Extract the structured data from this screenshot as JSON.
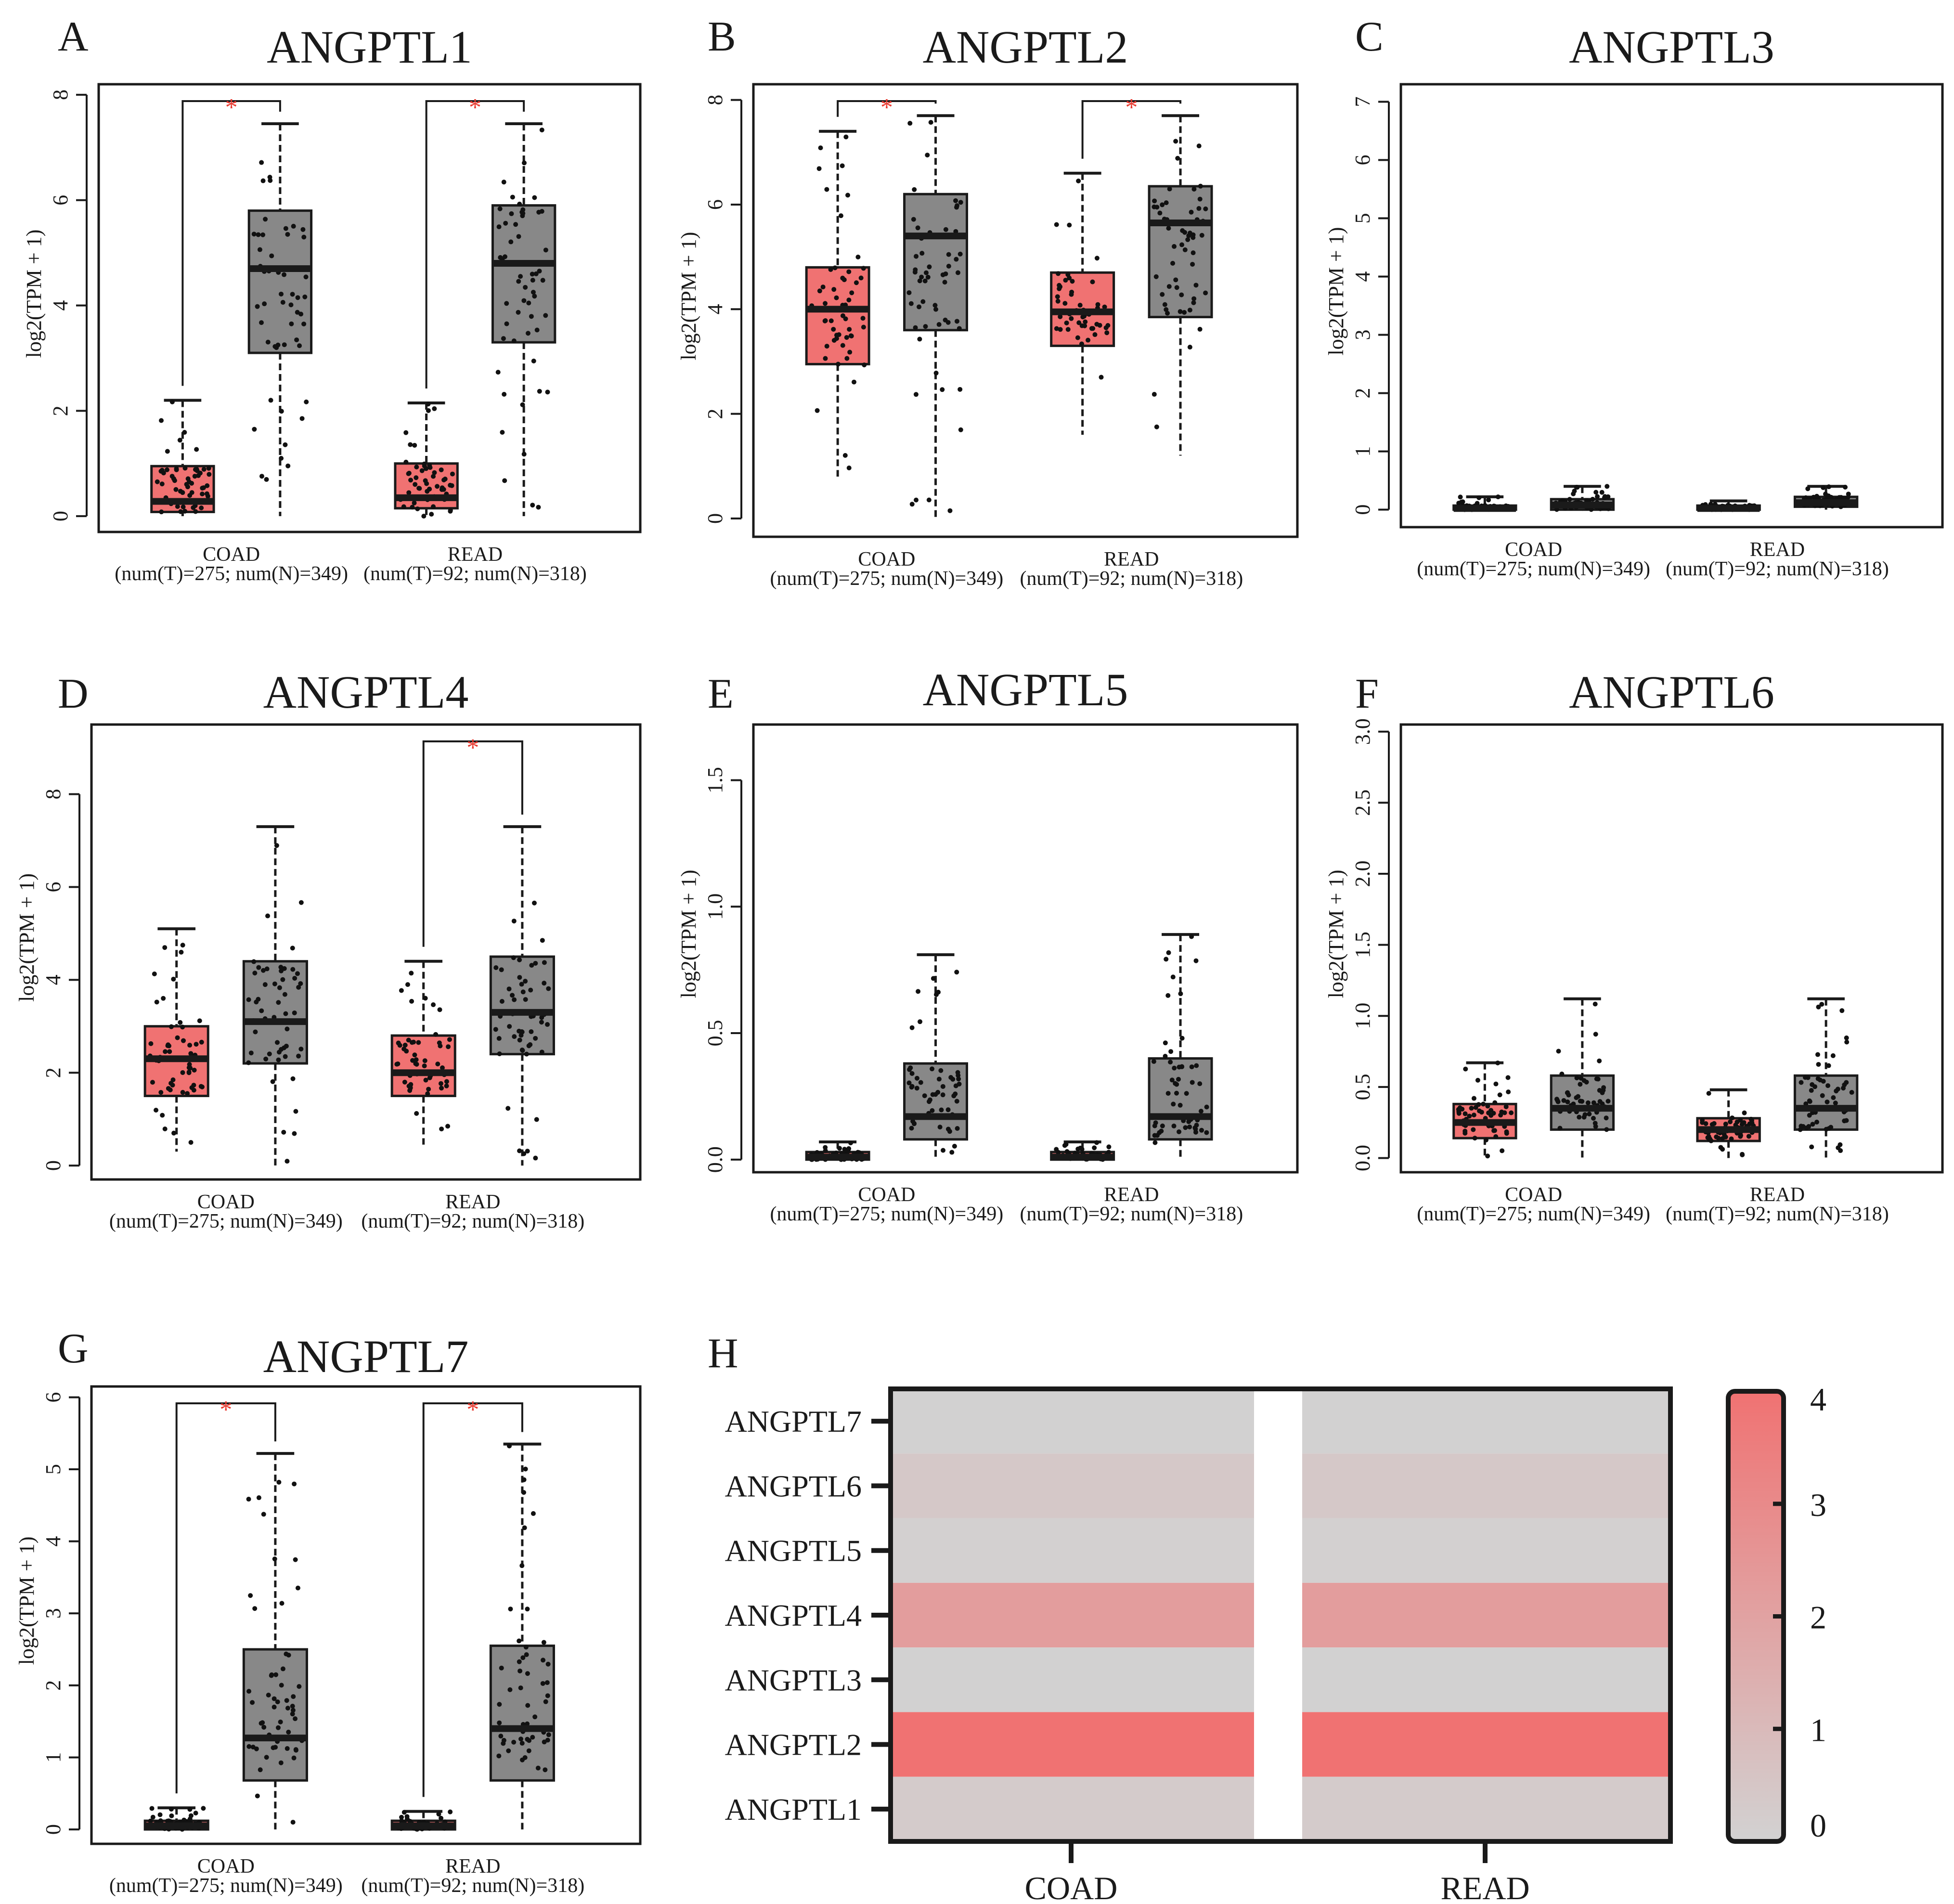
{
  "figure": {
    "tumor_color": "#f07272",
    "normal_color": "#888888",
    "sig_color": "#e8392f",
    "sig_marker": "*",
    "ylabel": "log2(TPM + 1)"
  },
  "chart_data": [
    {
      "panel": "A",
      "type": "box",
      "title": "ANGPTL1",
      "ylabel": "log2(TPM + 1)",
      "ylim": [
        -0.3,
        8.2
      ],
      "yticks": [
        "0",
        "2",
        "4",
        "6",
        "8"
      ],
      "ytick_values": [
        0,
        2,
        4,
        6,
        8
      ],
      "groups": [
        {
          "name": "COAD",
          "counts": "(num(T)=275; num(N)=349)",
          "tumor": {
            "q1": 0.08,
            "median": 0.28,
            "q3": 0.95,
            "whisker_low": 0,
            "whisker_high": 2.2
          },
          "normal": {
            "q1": 3.1,
            "median": 4.7,
            "q3": 5.8,
            "whisker_low": 0,
            "whisker_high": 7.45
          },
          "significant": true
        },
        {
          "name": "READ",
          "counts": "(num(T)=92; num(N)=318)",
          "tumor": {
            "q1": 0.15,
            "median": 0.35,
            "q3": 1.0,
            "whisker_low": 0,
            "whisker_high": 2.15
          },
          "normal": {
            "q1": 3.3,
            "median": 4.8,
            "q3": 5.9,
            "whisker_low": 0,
            "whisker_high": 7.45
          },
          "significant": true
        }
      ]
    },
    {
      "panel": "B",
      "type": "box",
      "title": "ANGPTL2",
      "ylabel": "log2(TPM + 1)",
      "ylim": [
        -0.35,
        8.3
      ],
      "yticks": [
        "0",
        "2",
        "4",
        "6",
        "8"
      ],
      "ytick_values": [
        0,
        2,
        4,
        6,
        8
      ],
      "groups": [
        {
          "name": "COAD",
          "counts": "(num(T)=275; num(N)=349)",
          "tumor": {
            "q1": 2.95,
            "median": 4.0,
            "q3": 4.8,
            "whisker_low": 0.8,
            "whisker_high": 7.4
          },
          "normal": {
            "q1": 3.6,
            "median": 5.4,
            "q3": 6.2,
            "whisker_low": 0,
            "whisker_high": 7.7
          },
          "significant": true
        },
        {
          "name": "READ",
          "counts": "(num(T)=92; num(N)=318)",
          "tumor": {
            "q1": 3.3,
            "median": 3.95,
            "q3": 4.7,
            "whisker_low": 1.6,
            "whisker_high": 6.6
          },
          "normal": {
            "q1": 3.85,
            "median": 5.65,
            "q3": 6.35,
            "whisker_low": 1.2,
            "whisker_high": 7.7
          },
          "significant": true
        }
      ]
    },
    {
      "panel": "C",
      "type": "box",
      "title": "ANGPTL3",
      "ylabel": "log2(TPM + 1)",
      "ylim": [
        -0.3,
        7.3
      ],
      "yticks": [
        "0",
        "1",
        "2",
        "3",
        "4",
        "5",
        "6",
        "7"
      ],
      "ytick_values": [
        0,
        1,
        2,
        3,
        4,
        5,
        6,
        7
      ],
      "groups": [
        {
          "name": "COAD",
          "counts": "(num(T)=275; num(N)=349)",
          "tumor": {
            "q1": 0.0,
            "median": 0.02,
            "q3": 0.07,
            "whisker_low": 0,
            "whisker_high": 0.22
          },
          "normal": {
            "q1": 0.0,
            "median": 0.08,
            "q3": 0.18,
            "whisker_low": 0,
            "whisker_high": 0.4
          },
          "significant": false
        },
        {
          "name": "READ",
          "counts": "(num(T)=92; num(N)=318)",
          "tumor": {
            "q1": 0.0,
            "median": 0.02,
            "q3": 0.07,
            "whisker_low": 0,
            "whisker_high": 0.15
          },
          "normal": {
            "q1": 0.05,
            "median": 0.12,
            "q3": 0.22,
            "whisker_low": 0,
            "whisker_high": 0.4
          },
          "significant": false
        }
      ]
    },
    {
      "panel": "D",
      "type": "box",
      "title": "ANGPTL4",
      "ylabel": "log2(TPM + 1)",
      "ylim": [
        -0.3,
        9.5
      ],
      "yticks": [
        "0",
        "2",
        "4",
        "6",
        "8"
      ],
      "ytick_values": [
        0,
        2,
        4,
        6,
        8
      ],
      "groups": [
        {
          "name": "COAD",
          "counts": "(num(T)=275; num(N)=349)",
          "tumor": {
            "q1": 1.5,
            "median": 2.3,
            "q3": 3.0,
            "whisker_low": 0.3,
            "whisker_high": 5.1
          },
          "normal": {
            "q1": 2.2,
            "median": 3.1,
            "q3": 4.4,
            "whisker_low": 0,
            "whisker_high": 7.3
          },
          "significant": false
        },
        {
          "name": "READ",
          "counts": "(num(T)=92; num(N)=318)",
          "tumor": {
            "q1": 1.5,
            "median": 2.0,
            "q3": 2.8,
            "whisker_low": 0.45,
            "whisker_high": 4.4
          },
          "normal": {
            "q1": 2.4,
            "median": 3.3,
            "q3": 4.5,
            "whisker_low": 0,
            "whisker_high": 7.3
          },
          "significant": true
        }
      ]
    },
    {
      "panel": "E",
      "type": "box",
      "title": "ANGPTL5",
      "ylabel": "log2(TPM + 1)",
      "ylim": [
        -0.05,
        1.72
      ],
      "yticks": [
        "0.0",
        "0.5",
        "1.0",
        "1.5"
      ],
      "ytick_values": [
        0,
        0.5,
        1.0,
        1.5
      ],
      "groups": [
        {
          "name": "COAD",
          "counts": "(num(T)=275; num(N)=349)",
          "tumor": {
            "q1": 0.0,
            "median": 0.01,
            "q3": 0.03,
            "whisker_low": 0,
            "whisker_high": 0.07
          },
          "normal": {
            "q1": 0.08,
            "median": 0.17,
            "q3": 0.38,
            "whisker_low": 0,
            "whisker_high": 0.81
          },
          "significant": false
        },
        {
          "name": "READ",
          "counts": "(num(T)=92; num(N)=318)",
          "tumor": {
            "q1": 0.0,
            "median": 0.01,
            "q3": 0.03,
            "whisker_low": 0,
            "whisker_high": 0.07
          },
          "normal": {
            "q1": 0.08,
            "median": 0.17,
            "q3": 0.4,
            "whisker_low": 0,
            "whisker_high": 0.89
          },
          "significant": false
        }
      ]
    },
    {
      "panel": "F",
      "type": "box",
      "title": "ANGPTL6",
      "ylabel": "log2(TPM + 1)",
      "ylim": [
        -0.1,
        3.05
      ],
      "yticks": [
        "0.0",
        "0.5",
        "1.0",
        "1.5",
        "2.0",
        "2.5",
        "3.0"
      ],
      "ytick_values": [
        0,
        0.5,
        1.0,
        1.5,
        2.0,
        2.5,
        3.0
      ],
      "groups": [
        {
          "name": "COAD",
          "counts": "(num(T)=275; num(N)=349)",
          "tumor": {
            "q1": 0.14,
            "median": 0.25,
            "q3": 0.38,
            "whisker_low": 0,
            "whisker_high": 0.67
          },
          "normal": {
            "q1": 0.2,
            "median": 0.35,
            "q3": 0.58,
            "whisker_low": 0,
            "whisker_high": 1.12
          },
          "significant": false
        },
        {
          "name": "READ",
          "counts": "(num(T)=92; num(N)=318)",
          "tumor": {
            "q1": 0.12,
            "median": 0.2,
            "q3": 0.28,
            "whisker_low": 0,
            "whisker_high": 0.48
          },
          "normal": {
            "q1": 0.2,
            "median": 0.35,
            "q3": 0.58,
            "whisker_low": 0,
            "whisker_high": 1.12
          },
          "significant": false
        }
      ]
    },
    {
      "panel": "G",
      "type": "box",
      "title": "ANGPTL7",
      "ylabel": "log2(TPM + 1)",
      "ylim": [
        -0.2,
        6.15
      ],
      "yticks": [
        "0",
        "1",
        "2",
        "3",
        "4",
        "5",
        "6"
      ],
      "ytick_values": [
        0,
        1,
        2,
        3,
        4,
        5,
        6
      ],
      "groups": [
        {
          "name": "COAD",
          "counts": "(num(T)=275; num(N)=349)",
          "tumor": {
            "q1": 0.0,
            "median": 0.05,
            "q3": 0.12,
            "whisker_low": 0,
            "whisker_high": 0.3
          },
          "normal": {
            "q1": 0.68,
            "median": 1.27,
            "q3": 2.5,
            "whisker_low": 0,
            "whisker_high": 5.22
          },
          "significant": true
        },
        {
          "name": "READ",
          "counts": "(num(T)=92; num(N)=318)",
          "tumor": {
            "q1": 0.0,
            "median": 0.05,
            "q3": 0.12,
            "whisker_low": 0,
            "whisker_high": 0.25
          },
          "normal": {
            "q1": 0.68,
            "median": 1.4,
            "q3": 2.55,
            "whisker_low": 0,
            "whisker_high": 5.35
          },
          "significant": true
        }
      ]
    },
    {
      "panel": "H",
      "type": "heatmap",
      "rows": [
        "ANGPTL7",
        "ANGPTL6",
        "ANGPTL5",
        "ANGPTL4",
        "ANGPTL3",
        "ANGPTL2",
        "ANGPTL1"
      ],
      "columns": [
        "COAD",
        "READ"
      ],
      "values": [
        [
          0.05,
          0.05
        ],
        [
          0.4,
          0.4
        ],
        [
          0.1,
          0.1
        ],
        [
          2.2,
          2.2
        ],
        [
          0.05,
          0.05
        ],
        [
          4.0,
          4.0
        ],
        [
          0.3,
          0.3
        ]
      ],
      "colorbar": {
        "min": 0,
        "max": 4,
        "ticks": [
          "0",
          "1",
          "2",
          "3",
          "4"
        ],
        "low_color": "#d2d2d2",
        "high_color": "#f07272"
      }
    }
  ]
}
